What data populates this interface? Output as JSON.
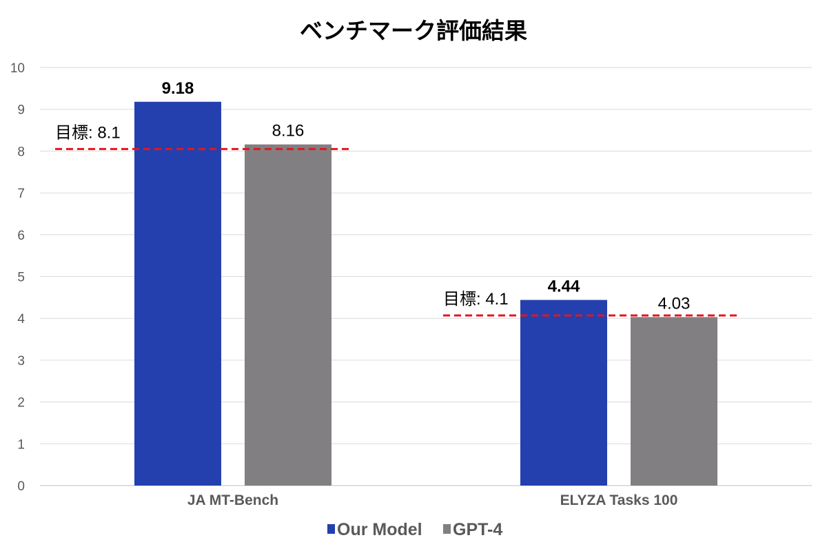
{
  "chart_data": {
    "type": "bar",
    "title": "ベンチマーク評価結果",
    "categories": [
      "JA MT-Bench",
      "ELYZA Tasks 100"
    ],
    "series": [
      {
        "name": "Our Model",
        "values": [
          9.18,
          4.44
        ],
        "color": "#2340AE",
        "label_bold": true
      },
      {
        "name": "GPT-4",
        "values": [
          8.16,
          4.03
        ],
        "color": "#827F82",
        "label_bold": false
      }
    ],
    "targets": [
      {
        "category": "JA MT-Bench",
        "value": 8.05,
        "label": "目標: 8.1"
      },
      {
        "category": "ELYZA Tasks 100",
        "value": 4.07,
        "label": "目標: 4.1"
      }
    ],
    "target_color": "#E8141C",
    "ylim": [
      0,
      10
    ],
    "yticks": [
      0,
      1,
      2,
      3,
      4,
      5,
      6,
      7,
      8,
      9,
      10
    ],
    "grid": true,
    "xlabel": "",
    "ylabel": "",
    "legend": "bottom-center",
    "data_labels": [
      [
        "9.18",
        "4.44"
      ],
      [
        "8.16",
        "4.03"
      ]
    ]
  }
}
